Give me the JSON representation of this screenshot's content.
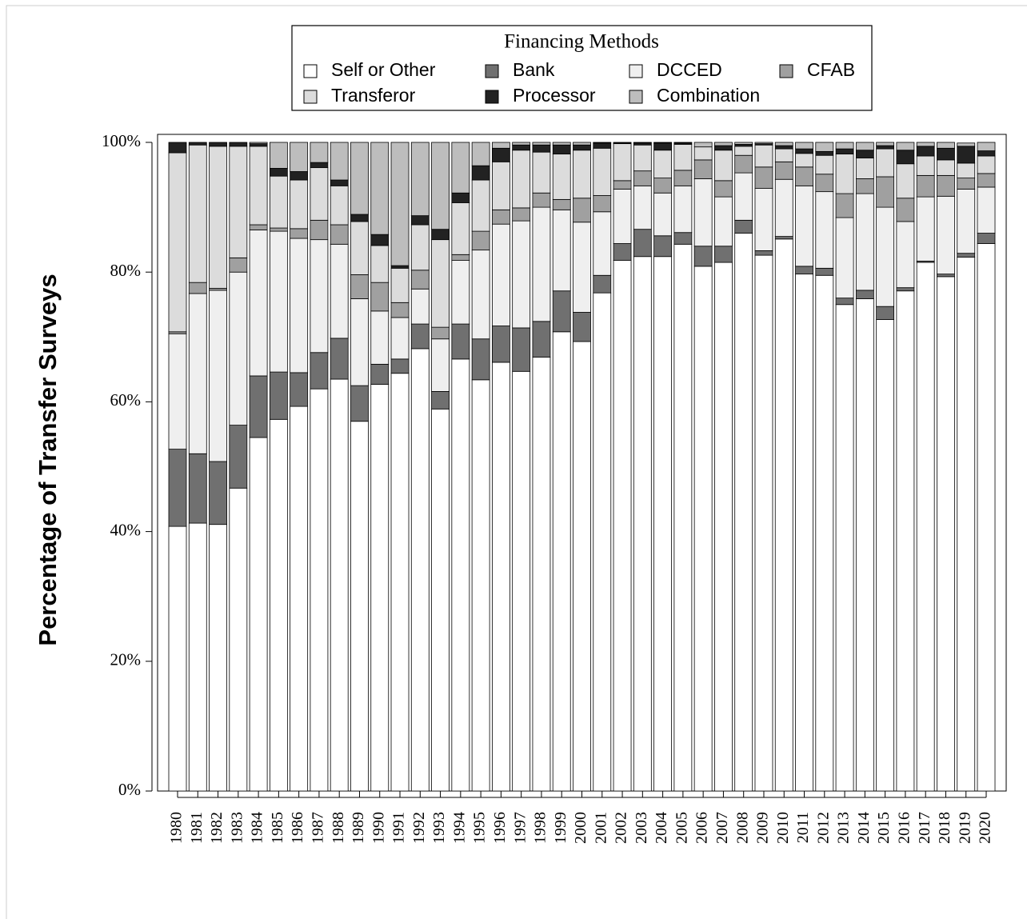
{
  "chart_data": {
    "type": "stacked_bar",
    "legend_title": "Financing Methods",
    "ylabel": "Percentage of Transfer Surveys",
    "legend": "top",
    "categories": [
      "1980",
      "1981",
      "1982",
      "1983",
      "1984",
      "1985",
      "1986",
      "1987",
      "1988",
      "1989",
      "1990",
      "1991",
      "1992",
      "1993",
      "1994",
      "1995",
      "1996",
      "1997",
      "1998",
      "1999",
      "2000",
      "2001",
      "2002",
      "2003",
      "2004",
      "2005",
      "2006",
      "2007",
      "2008",
      "2009",
      "2010",
      "2011",
      "2012",
      "2013",
      "2014",
      "2015",
      "2016",
      "2017",
      "2018",
      "2019",
      "2020"
    ],
    "ylim": [
      0,
      100
    ],
    "yticks": [
      {
        "value": 0,
        "label": "0%"
      },
      {
        "value": 20,
        "label": "20%"
      },
      {
        "value": 40,
        "label": "40%"
      },
      {
        "value": 60,
        "label": "60%"
      },
      {
        "value": 80,
        "label": "80%"
      },
      {
        "value": 100,
        "label": "100%"
      }
    ],
    "series": [
      {
        "name": "Self or Other",
        "color": "#ffffff",
        "values": [
          40.8,
          41.3,
          41.1,
          46.7,
          54.5,
          57.3,
          59.3,
          62.0,
          63.5,
          57.0,
          62.7,
          64.4,
          68.2,
          58.9,
          66.6,
          63.4,
          66.1,
          64.7,
          66.9,
          70.8,
          69.3,
          76.8,
          81.8,
          82.4,
          82.4,
          84.3,
          80.9,
          81.5,
          86.0,
          82.6,
          85.1,
          79.7,
          79.5,
          75.0,
          75.9,
          72.7,
          77.1,
          81.5,
          79.3,
          82.3,
          84.4
        ]
      },
      {
        "name": "Bank",
        "color": "#707070",
        "values": [
          11.9,
          10.7,
          9.7,
          9.7,
          9.5,
          7.3,
          5.2,
          5.6,
          6.3,
          5.5,
          3.1,
          2.2,
          3.8,
          2.7,
          5.4,
          6.3,
          5.6,
          6.7,
          5.5,
          6.3,
          4.5,
          2.7,
          2.6,
          4.2,
          3.2,
          1.8,
          3.1,
          2.5,
          2.0,
          0.7,
          0.4,
          1.2,
          1.1,
          1.0,
          1.3,
          2.0,
          0.5,
          0.2,
          0.4,
          0.6,
          1.6
        ]
      },
      {
        "name": "DCCED",
        "color": "#efefef",
        "values": [
          17.8,
          24.7,
          26.4,
          23.6,
          22.5,
          21.7,
          20.7,
          17.4,
          14.5,
          13.4,
          8.2,
          6.4,
          5.4,
          8.1,
          9.8,
          13.7,
          15.7,
          16.5,
          17.6,
          12.5,
          13.9,
          9.8,
          8.4,
          6.7,
          6.6,
          7.2,
          10.4,
          7.6,
          7.3,
          9.6,
          8.8,
          12.4,
          11.8,
          12.4,
          14.9,
          15.3,
          10.2,
          9.9,
          12.0,
          9.9,
          7.1
        ]
      },
      {
        "name": "CFAB",
        "color": "#a0a0a0",
        "values": [
          0.3,
          1.7,
          0.3,
          2.2,
          0.8,
          0.5,
          1.5,
          3.0,
          3.0,
          3.7,
          4.4,
          2.3,
          2.9,
          1.8,
          0.9,
          2.9,
          2.2,
          2.0,
          2.2,
          1.6,
          3.7,
          2.5,
          1.3,
          2.3,
          2.3,
          2.4,
          2.9,
          2.5,
          2.7,
          3.3,
          2.7,
          2.9,
          2.7,
          3.7,
          2.3,
          4.7,
          3.6,
          3.3,
          3.2,
          1.7,
          2.1
        ]
      },
      {
        "name": "Transferor",
        "color": "#dcdcdc",
        "values": [
          27.6,
          21.2,
          21.9,
          17.2,
          12.1,
          8.0,
          7.5,
          8.1,
          6.0,
          8.2,
          5.7,
          5.3,
          7.0,
          13.5,
          8.0,
          7.9,
          7.4,
          8.9,
          6.3,
          7.0,
          7.4,
          7.3,
          5.7,
          4.0,
          4.3,
          4.0,
          2.0,
          4.7,
          1.4,
          3.4,
          2.0,
          2.1,
          2.9,
          6.1,
          3.2,
          4.3,
          5.3,
          3.0,
          2.4,
          2.3,
          2.7
        ]
      },
      {
        "name": "Processor",
        "color": "#222222",
        "values": [
          1.6,
          0.4,
          0.6,
          0.6,
          0.4,
          1.2,
          1.3,
          0.8,
          0.9,
          1.1,
          1.7,
          0.4,
          1.4,
          1.6,
          1.5,
          2.2,
          2.1,
          0.8,
          1.1,
          1.4,
          0.8,
          0.8,
          0.1,
          0.3,
          1.1,
          0.2,
          0,
          0.7,
          0.3,
          0.2,
          0.5,
          0.7,
          0.6,
          0.8,
          1.2,
          0.5,
          2.1,
          1.5,
          1.8,
          2.6,
          0.8
        ]
      },
      {
        "name": "Combination",
        "color": "#bdbdbd",
        "values": [
          0,
          0,
          0,
          0,
          0.2,
          4.0,
          4.5,
          3.1,
          5.8,
          11.1,
          14.2,
          19.0,
          11.3,
          13.4,
          7.8,
          3.6,
          0.9,
          0.4,
          0.4,
          0.4,
          0.4,
          0.1,
          0.1,
          0.1,
          0.1,
          0.1,
          0.7,
          0.5,
          0.3,
          0.2,
          0.5,
          1.0,
          1.4,
          1.0,
          1.2,
          0.5,
          1.2,
          0.6,
          0.9,
          0.5,
          1.3
        ]
      }
    ]
  }
}
